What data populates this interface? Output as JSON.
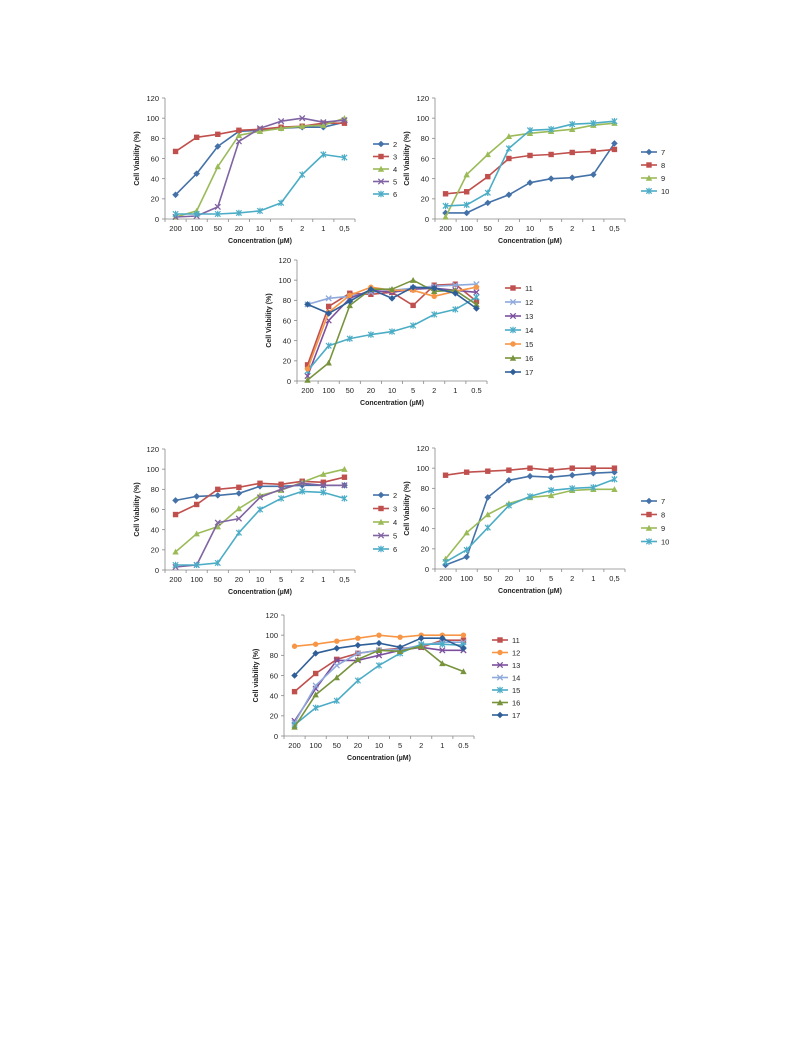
{
  "colors": {
    "2": "#4472a8",
    "3": "#c0504d",
    "4": "#9bbb59",
    "5": "#8064a2",
    "6": "#4bacc6",
    "7": "#4472a8",
    "8": "#c0504d",
    "9": "#9bbb59",
    "10": "#4bacc6",
    "11": "#c0504d",
    "12": "#8ea9db",
    "13": "#7b4f9d",
    "14": "#4bacc6",
    "15": "#f79646",
    "16": "#77933c",
    "17": "#2f5f98"
  },
  "chart_data": [
    {
      "type": "line",
      "categories": [
        "200",
        "100",
        "50",
        "20",
        "10",
        "5",
        "2",
        "1",
        "0,5"
      ],
      "ylabel": "Cell Viability (%)",
      "xlabel": "Concentration (µM)",
      "ylim": [
        0,
        120
      ],
      "yticks": [
        "0",
        "20",
        "40",
        "60",
        "80",
        "100",
        "120"
      ],
      "legend": "right",
      "series": [
        {
          "name": "2",
          "color_key": "2",
          "marker": "diamond",
          "values": [
            24,
            45,
            72,
            87,
            88,
            90,
            91,
            91,
            96
          ]
        },
        {
          "name": "3",
          "color_key": "3",
          "marker": "square",
          "values": [
            67,
            81,
            84,
            88,
            89,
            91,
            92,
            95,
            95
          ]
        },
        {
          "name": "4",
          "color_key": "4",
          "marker": "triangle",
          "values": [
            2,
            8,
            52,
            83,
            87,
            90,
            92,
            93,
            100
          ]
        },
        {
          "name": "5",
          "color_key": "5",
          "marker": "x",
          "values": [
            2,
            3,
            12,
            77,
            90,
            97,
            100,
            96,
            98
          ]
        },
        {
          "name": "6",
          "color_key": "6",
          "marker": "star",
          "values": [
            5,
            5,
            5,
            6,
            8,
            16,
            44,
            64,
            61
          ]
        }
      ]
    },
    {
      "type": "line",
      "categories": [
        "200",
        "100",
        "50",
        "20",
        "10",
        "5",
        "2",
        "1",
        "0,5"
      ],
      "ylabel": "Cell Viability (%)",
      "xlabel": "Concentration (µM)",
      "ylim": [
        0,
        120
      ],
      "yticks": [
        "0",
        "20",
        "40",
        "60",
        "80",
        "100",
        "120"
      ],
      "legend": "right",
      "series": [
        {
          "name": "7",
          "color_key": "7",
          "marker": "diamond",
          "values": [
            6,
            6,
            16,
            24,
            36,
            40,
            41,
            44,
            75
          ]
        },
        {
          "name": "8",
          "color_key": "8",
          "marker": "square",
          "values": [
            25,
            27,
            42,
            60,
            63,
            64,
            66,
            67,
            69
          ]
        },
        {
          "name": "9",
          "color_key": "9",
          "marker": "triangle",
          "values": [
            2,
            44,
            64,
            82,
            85,
            87,
            89,
            93,
            95
          ]
        },
        {
          "name": "10",
          "color_key": "10",
          "marker": "star",
          "values": [
            13,
            14,
            26,
            70,
            88,
            89,
            94,
            95,
            97
          ]
        }
      ]
    },
    {
      "type": "line",
      "categories": [
        "200",
        "100",
        "50",
        "20",
        "10",
        "5",
        "2",
        "1",
        "0.5"
      ],
      "ylabel": "Cell Viability (%)",
      "xlabel": "Concentration (µM)",
      "ylim": [
        0,
        120
      ],
      "yticks": [
        "0",
        "20",
        "40",
        "60",
        "80",
        "100",
        "120"
      ],
      "legend": "right",
      "series": [
        {
          "name": "11",
          "color_key": "11",
          "marker": "square",
          "values": [
            16,
            74,
            87,
            86,
            88,
            75,
            95,
            96,
            79
          ]
        },
        {
          "name": "12",
          "color_key": "12",
          "marker": "x",
          "values": [
            76,
            82,
            84,
            88,
            90,
            92,
            94,
            95,
            96
          ]
        },
        {
          "name": "13",
          "color_key": "13",
          "marker": "x",
          "values": [
            5,
            60,
            82,
            90,
            88,
            91,
            92,
            90,
            88
          ]
        },
        {
          "name": "14",
          "color_key": "14",
          "marker": "star",
          "values": [
            10,
            35,
            42,
            46,
            49,
            55,
            66,
            71,
            83
          ]
        },
        {
          "name": "15",
          "color_key": "15",
          "marker": "circle",
          "values": [
            12,
            68,
            85,
            93,
            90,
            90,
            84,
            89,
            93
          ]
        },
        {
          "name": "16",
          "color_key": "16",
          "marker": "triangle",
          "values": [
            1,
            18,
            75,
            91,
            91,
            100,
            89,
            90,
            76
          ]
        },
        {
          "name": "17",
          "color_key": "17",
          "marker": "diamond",
          "values": [
            76,
            67,
            79,
            91,
            82,
            93,
            92,
            87,
            72
          ]
        }
      ]
    },
    {
      "type": "line",
      "categories": [
        "200",
        "100",
        "50",
        "20",
        "10",
        "5",
        "2",
        "1",
        "0,5"
      ],
      "ylabel": "Cell Viability (%)",
      "xlabel": "Concentration (µM)",
      "ylim": [
        0,
        120
      ],
      "yticks": [
        "0",
        "20",
        "40",
        "60",
        "80",
        "100",
        "120"
      ],
      "legend": "right",
      "series": [
        {
          "name": "2",
          "color_key": "2",
          "marker": "diamond",
          "values": [
            69,
            73,
            74,
            76,
            83,
            83,
            84,
            84,
            84
          ]
        },
        {
          "name": "3",
          "color_key": "3",
          "marker": "square",
          "values": [
            55,
            65,
            80,
            82,
            86,
            85,
            88,
            87,
            92
          ]
        },
        {
          "name": "4",
          "color_key": "4",
          "marker": "triangle",
          "values": [
            18,
            36,
            43,
            61,
            74,
            79,
            87,
            95,
            100
          ]
        },
        {
          "name": "5",
          "color_key": "5",
          "marker": "x",
          "values": [
            3,
            5,
            47,
            51,
            72,
            80,
            86,
            84,
            84
          ]
        },
        {
          "name": "6",
          "color_key": "6",
          "marker": "star",
          "values": [
            5,
            5,
            7,
            37,
            60,
            71,
            78,
            77,
            71
          ]
        }
      ]
    },
    {
      "type": "line",
      "categories": [
        "200",
        "100",
        "50",
        "20",
        "10",
        "5",
        "2",
        "1",
        "0,5"
      ],
      "ylabel": "Cell Viability (%)",
      "xlabel": "Concentration (µM)",
      "ylim": [
        0,
        120
      ],
      "yticks": [
        "0",
        "20",
        "40",
        "60",
        "80",
        "100",
        "120"
      ],
      "legend": "right",
      "series": [
        {
          "name": "7",
          "color_key": "7",
          "marker": "diamond",
          "values": [
            4,
            12,
            71,
            88,
            92,
            91,
            93,
            95,
            96
          ]
        },
        {
          "name": "8",
          "color_key": "8",
          "marker": "square",
          "values": [
            93,
            96,
            97,
            98,
            100,
            98,
            100,
            100,
            100
          ]
        },
        {
          "name": "9",
          "color_key": "9",
          "marker": "triangle",
          "values": [
            10,
            36,
            54,
            65,
            71,
            73,
            78,
            79,
            79
          ]
        },
        {
          "name": "10",
          "color_key": "10",
          "marker": "star",
          "values": [
            7,
            19,
            41,
            63,
            72,
            78,
            80,
            81,
            89
          ]
        }
      ]
    },
    {
      "type": "line",
      "categories": [
        "200",
        "100",
        "50",
        "20",
        "10",
        "5",
        "2",
        "1",
        "0.5"
      ],
      "ylabel": "Cell viability (%)",
      "xlabel": "Concentration (µM)",
      "ylim": [
        0,
        120
      ],
      "yticks": [
        "0",
        "20",
        "40",
        "60",
        "80",
        "100",
        "120"
      ],
      "legend": "right",
      "series": [
        {
          "name": "11",
          "color_key": "11",
          "marker": "square",
          "values": [
            44,
            62,
            76,
            82,
            85,
            87,
            88,
            95,
            95
          ]
        },
        {
          "name": "12",
          "color_key": "15",
          "marker": "circle",
          "values": [
            89,
            91,
            94,
            97,
            100,
            98,
            100,
            100,
            100
          ]
        },
        {
          "name": "13",
          "color_key": "13",
          "marker": "x",
          "values": [
            15,
            47,
            75,
            75,
            80,
            85,
            88,
            85,
            85
          ]
        },
        {
          "name": "14",
          "color_key": "12",
          "marker": "x",
          "values": [
            13,
            50,
            70,
            82,
            85,
            86,
            90,
            93,
            93
          ]
        },
        {
          "name": "15",
          "color_key": "14",
          "marker": "star",
          "values": [
            11,
            28,
            35,
            55,
            70,
            82,
            91,
            91,
            90
          ]
        },
        {
          "name": "16",
          "color_key": "16",
          "marker": "triangle",
          "values": [
            9,
            41,
            58,
            76,
            85,
            84,
            89,
            72,
            64
          ]
        },
        {
          "name": "17",
          "color_key": "17",
          "marker": "diamond",
          "values": [
            60,
            82,
            87,
            90,
            92,
            88,
            97,
            97,
            87
          ]
        }
      ]
    }
  ]
}
